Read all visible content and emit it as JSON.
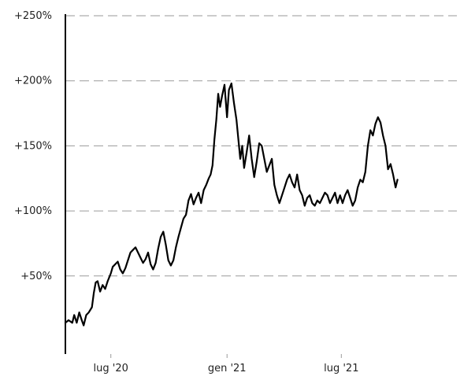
{
  "chart_data": {
    "type": "line",
    "title": "",
    "xlabel": "",
    "ylabel": "",
    "grid": true,
    "legend": "none",
    "line_color": "#000000",
    "grid_color": "#9a9a9a",
    "ylim": [
      -10,
      250
    ],
    "y_ticks": [
      {
        "value": 50,
        "label": "+50%"
      },
      {
        "value": 100,
        "label": "+100%"
      },
      {
        "value": 150,
        "label": "+150%"
      },
      {
        "value": 200,
        "label": "+200%"
      },
      {
        "value": 250,
        "label": "+250%"
      }
    ],
    "xlim": [
      "2020-04-20",
      "2021-12-31"
    ],
    "x_ticks": [
      {
        "date": "2020-07-01",
        "label": "lug '20"
      },
      {
        "date": "2021-01-01",
        "label": "gen '21"
      },
      {
        "date": "2021-07-01",
        "label": "lug '21"
      }
    ],
    "series": [
      {
        "points": [
          [
            "2020-04-20",
            14
          ],
          [
            "2020-04-25",
            16
          ],
          [
            "2020-05-01",
            14
          ],
          [
            "2020-05-04",
            20
          ],
          [
            "2020-05-08",
            14
          ],
          [
            "2020-05-12",
            22
          ],
          [
            "2020-05-16",
            16
          ],
          [
            "2020-05-19",
            12
          ],
          [
            "2020-05-23",
            20
          ],
          [
            "2020-05-27",
            22
          ],
          [
            "2020-06-01",
            26
          ],
          [
            "2020-06-04",
            37
          ],
          [
            "2020-06-07",
            45
          ],
          [
            "2020-06-10",
            46
          ],
          [
            "2020-06-14",
            38
          ],
          [
            "2020-06-18",
            43
          ],
          [
            "2020-06-22",
            40
          ],
          [
            "2020-06-26",
            46
          ],
          [
            "2020-07-01",
            52
          ],
          [
            "2020-07-04",
            57
          ],
          [
            "2020-07-08",
            59
          ],
          [
            "2020-07-12",
            61
          ],
          [
            "2020-07-16",
            55
          ],
          [
            "2020-07-20",
            52
          ],
          [
            "2020-07-24",
            56
          ],
          [
            "2020-07-28",
            62
          ],
          [
            "2020-08-01",
            68
          ],
          [
            "2020-08-05",
            70
          ],
          [
            "2020-08-09",
            72
          ],
          [
            "2020-08-13",
            68
          ],
          [
            "2020-08-17",
            64
          ],
          [
            "2020-08-21",
            60
          ],
          [
            "2020-08-25",
            63
          ],
          [
            "2020-08-29",
            68
          ],
          [
            "2020-09-02",
            59
          ],
          [
            "2020-09-06",
            55
          ],
          [
            "2020-09-10",
            60
          ],
          [
            "2020-09-14",
            71
          ],
          [
            "2020-09-18",
            80
          ],
          [
            "2020-09-22",
            84
          ],
          [
            "2020-09-26",
            74
          ],
          [
            "2020-09-30",
            62
          ],
          [
            "2020-10-04",
            58
          ],
          [
            "2020-10-08",
            62
          ],
          [
            "2020-10-12",
            72
          ],
          [
            "2020-10-16",
            80
          ],
          [
            "2020-10-20",
            87
          ],
          [
            "2020-10-24",
            94
          ],
          [
            "2020-10-28",
            97
          ],
          [
            "2020-11-01",
            108
          ],
          [
            "2020-11-05",
            113
          ],
          [
            "2020-11-09",
            105
          ],
          [
            "2020-11-13",
            110
          ],
          [
            "2020-11-17",
            114
          ],
          [
            "2020-11-21",
            106
          ],
          [
            "2020-11-25",
            116
          ],
          [
            "2020-11-29",
            120
          ],
          [
            "2020-12-03",
            125
          ],
          [
            "2020-12-06",
            128
          ],
          [
            "2020-12-09",
            135
          ],
          [
            "2020-12-12",
            155
          ],
          [
            "2020-12-15",
            170
          ],
          [
            "2020-12-18",
            190
          ],
          [
            "2020-12-21",
            180
          ],
          [
            "2020-12-24",
            188
          ],
          [
            "2020-12-28",
            197
          ],
          [
            "2021-01-01",
            172
          ],
          [
            "2021-01-04",
            193
          ],
          [
            "2021-01-08",
            198
          ],
          [
            "2021-01-12",
            183
          ],
          [
            "2021-01-16",
            170
          ],
          [
            "2021-01-19",
            155
          ],
          [
            "2021-01-22",
            140
          ],
          [
            "2021-01-25",
            150
          ],
          [
            "2021-01-28",
            133
          ],
          [
            "2021-02-01",
            145
          ],
          [
            "2021-02-05",
            158
          ],
          [
            "2021-02-09",
            140
          ],
          [
            "2021-02-13",
            126
          ],
          [
            "2021-02-17",
            138
          ],
          [
            "2021-02-21",
            152
          ],
          [
            "2021-02-25",
            150
          ],
          [
            "2021-03-01",
            140
          ],
          [
            "2021-03-05",
            130
          ],
          [
            "2021-03-09",
            135
          ],
          [
            "2021-03-13",
            140
          ],
          [
            "2021-03-17",
            120
          ],
          [
            "2021-03-21",
            112
          ],
          [
            "2021-03-25",
            106
          ],
          [
            "2021-03-29",
            112
          ],
          [
            "2021-04-02",
            118
          ],
          [
            "2021-04-06",
            124
          ],
          [
            "2021-04-10",
            128
          ],
          [
            "2021-04-14",
            122
          ],
          [
            "2021-04-18",
            118
          ],
          [
            "2021-04-22",
            128
          ],
          [
            "2021-04-26",
            116
          ],
          [
            "2021-04-30",
            112
          ],
          [
            "2021-05-04",
            104
          ],
          [
            "2021-05-08",
            110
          ],
          [
            "2021-05-12",
            112
          ],
          [
            "2021-05-16",
            106
          ],
          [
            "2021-05-20",
            104
          ],
          [
            "2021-05-24",
            108
          ],
          [
            "2021-05-28",
            106
          ],
          [
            "2021-06-01",
            110
          ],
          [
            "2021-06-05",
            114
          ],
          [
            "2021-06-09",
            112
          ],
          [
            "2021-06-13",
            106
          ],
          [
            "2021-06-17",
            110
          ],
          [
            "2021-06-21",
            114
          ],
          [
            "2021-06-25",
            106
          ],
          [
            "2021-06-29",
            112
          ],
          [
            "2021-07-03",
            106
          ],
          [
            "2021-07-07",
            112
          ],
          [
            "2021-07-11",
            116
          ],
          [
            "2021-07-15",
            110
          ],
          [
            "2021-07-19",
            104
          ],
          [
            "2021-07-23",
            108
          ],
          [
            "2021-07-27",
            118
          ],
          [
            "2021-07-31",
            124
          ],
          [
            "2021-08-04",
            122
          ],
          [
            "2021-08-08",
            130
          ],
          [
            "2021-08-12",
            150
          ],
          [
            "2021-08-16",
            162
          ],
          [
            "2021-08-20",
            158
          ],
          [
            "2021-08-24",
            167
          ],
          [
            "2021-08-28",
            172
          ],
          [
            "2021-09-01",
            168
          ],
          [
            "2021-09-05",
            158
          ],
          [
            "2021-09-09",
            150
          ],
          [
            "2021-09-13",
            132
          ],
          [
            "2021-09-17",
            136
          ],
          [
            "2021-09-21",
            128
          ],
          [
            "2021-09-25",
            118
          ],
          [
            "2021-09-28",
            124
          ]
        ]
      }
    ]
  }
}
